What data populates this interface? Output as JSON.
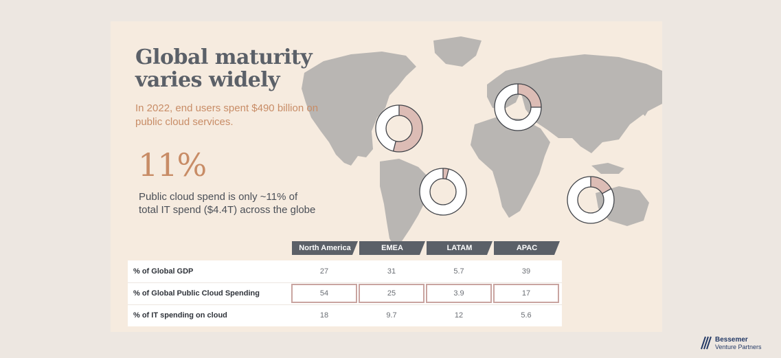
{
  "title": "Global maturity varies widely",
  "subtitle": "In 2022, end users spent $490 billion on public cloud services.",
  "highlight_value": "11%",
  "highlight_text": "Public cloud spend is only ~11% of total IT spend ($4.4T) across the globe",
  "colors": {
    "accent": "#c88c66",
    "dark": "#5b6068",
    "donut_fill": "#dcbcb5",
    "map": "#b9b6b3"
  },
  "regions": [
    {
      "name": "North America",
      "cloud_share_pct": 54
    },
    {
      "name": "EMEA",
      "cloud_share_pct": 25
    },
    {
      "name": "LATAM",
      "cloud_share_pct": 3.9
    },
    {
      "name": "APAC",
      "cloud_share_pct": 17
    }
  ],
  "table": {
    "headers": [
      "North America",
      "EMEA",
      "LATAM",
      "APAC"
    ],
    "rows": [
      {
        "label": "% of Global GDP",
        "values": [
          "27",
          "31",
          "5.7",
          "39"
        ]
      },
      {
        "label": "% of Global Public Cloud Spending",
        "values": [
          "54",
          "25",
          "3.9",
          "17"
        ]
      },
      {
        "label": "% of IT spending on cloud",
        "values": [
          "18",
          "9.7",
          "12",
          "5.6"
        ]
      }
    ]
  },
  "logo": {
    "line1": "Bessemer",
    "line2": "Venture Partners",
    "icon": "bessemer-logo-icon"
  }
}
